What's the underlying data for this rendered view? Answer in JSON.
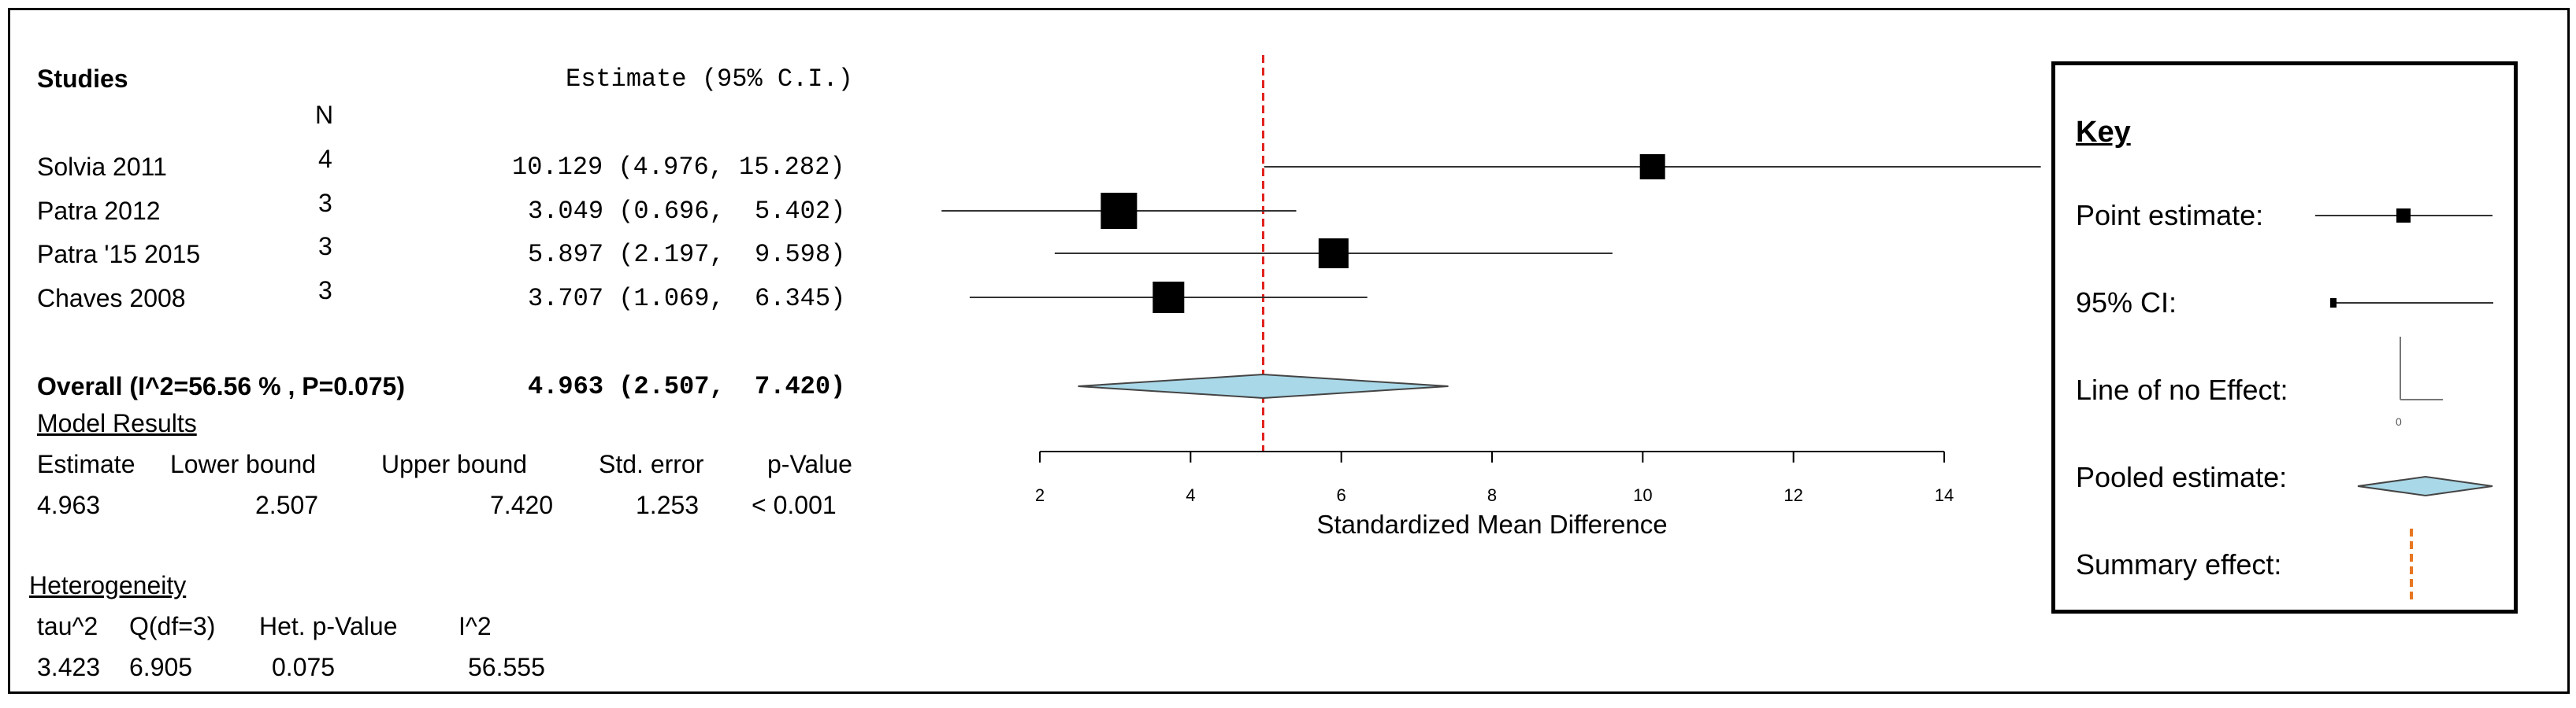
{
  "table": {
    "studies_header": "Studies",
    "estimate_header": "Estimate (95% C.I.)",
    "n_header": "N",
    "rows": [
      {
        "study": "Solvia 2011",
        "n": "4",
        "estimate": "10.129 (4.976, 15.282)"
      },
      {
        "study": "Patra 2012",
        "n": "3",
        "estimate": "3.049 (0.696,  5.402)"
      },
      {
        "study": "Patra '15 2015",
        "n": "3",
        "estimate": "5.897 (2.197,  9.598)"
      },
      {
        "study": "Chaves 2008",
        "n": "3",
        "estimate": "3.707 (1.069,  6.345)"
      }
    ],
    "overall_label": "Overall (I^2=56.56 % , P=0.075)",
    "overall_estimate": "4.963 (2.507,  7.420)"
  },
  "model_results": {
    "title": "Model Results",
    "headers": [
      "Estimate",
      "Lower bound",
      "Upper bound",
      "Std. error",
      "p-Value"
    ],
    "values": [
      "4.963",
      "2.507",
      "7.420",
      "1.253",
      "< 0.001"
    ]
  },
  "heterogeneity": {
    "title": "Heterogeneity",
    "headers": [
      "tau^2",
      "Q(df=3)",
      "Het. p-Value",
      "I^2"
    ],
    "values": [
      "3.423",
      "6.905",
      "0.075",
      "56.555"
    ]
  },
  "chart_data": {
    "type": "forest",
    "xlabel": "Standardized Mean Difference",
    "xlim": [
      2,
      14
    ],
    "ticks": [
      2,
      4,
      6,
      8,
      10,
      12,
      14
    ],
    "tick_labels": [
      "2",
      "4",
      "6",
      "8",
      "10",
      "12",
      "14"
    ],
    "summary_line": 4.963,
    "studies": [
      {
        "label": "Solvia 2011",
        "estimate": 10.129,
        "lower": 4.976,
        "upper": 15.282,
        "n": 4
      },
      {
        "label": "Patra 2012",
        "estimate": 3.049,
        "lower": 0.696,
        "upper": 5.402,
        "n": 3
      },
      {
        "label": "Patra '15 2015",
        "estimate": 5.897,
        "lower": 2.197,
        "upper": 9.598,
        "n": 3
      },
      {
        "label": "Chaves 2008",
        "estimate": 3.707,
        "lower": 1.069,
        "upper": 6.345,
        "n": 3
      }
    ],
    "pooled": {
      "estimate": 4.963,
      "lower": 2.507,
      "upper": 7.42
    }
  },
  "key": {
    "title": "Key",
    "items": [
      "Point estimate:",
      "95% CI:",
      "Line of no Effect:",
      "Pooled estimate:",
      "Summary effect:"
    ],
    "zero_label": "0"
  },
  "colors": {
    "diamond_fill": "#a9d8e8",
    "summary_line": "#e0201b",
    "key_summary_line": "#e87722"
  }
}
